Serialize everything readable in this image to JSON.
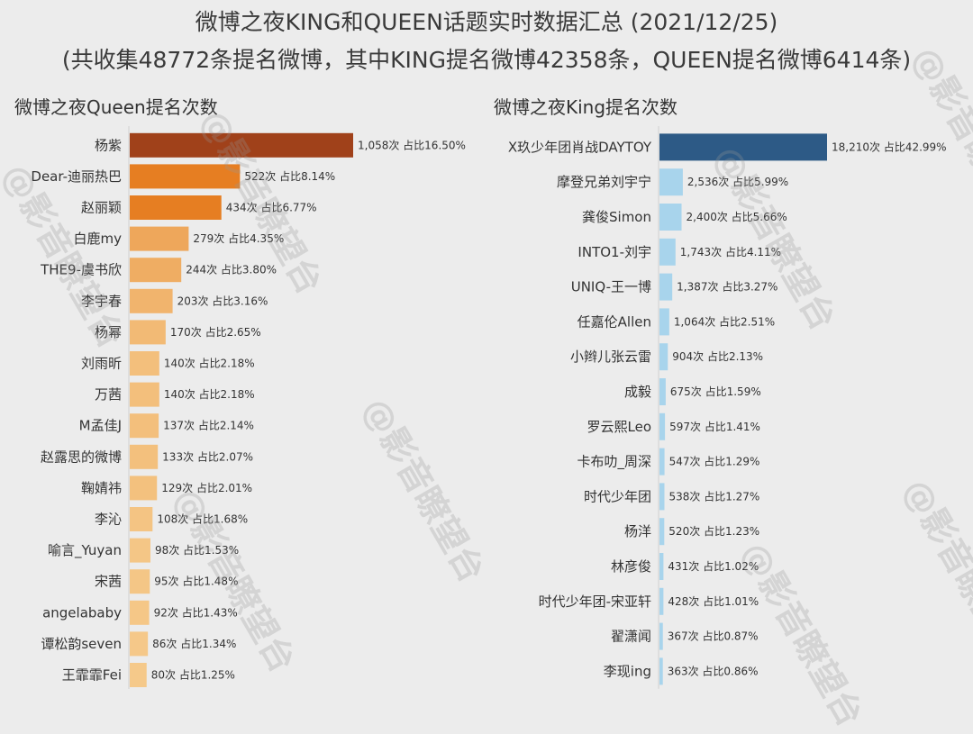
{
  "header": {
    "title": "微博之夜KING和QUEEN话题实时数据汇总 (2021/12/25)",
    "subtitle": "(共收集48772条提名微博，其中KING提名微博42358条，QUEEN提名微博6414条)"
  },
  "watermark_text": "@影音瞭望台",
  "chart_data": [
    {
      "type": "bar",
      "orientation": "horizontal",
      "title": "微博之夜Queen提名次数",
      "categories": [
        "杨紫",
        "Dear-迪丽热巴",
        "赵丽颖",
        "白鹿my",
        "THE9-虞书欣",
        "李宇春",
        "杨幂",
        "刘雨昕",
        "万茜",
        "M孟佳J",
        "赵露思的微博",
        "鞠婧祎",
        "李沁",
        "喻言_Yuyan",
        "宋茜",
        "angelababy",
        "谭松韵seven",
        "王霏霏Fei"
      ],
      "values": [
        1058,
        522,
        434,
        279,
        244,
        203,
        170,
        140,
        140,
        137,
        133,
        129,
        108,
        98,
        95,
        92,
        86,
        80
      ],
      "labels": [
        "1,058次 占比16.50%",
        "522次 占比8.14%",
        "434次 占比6.77%",
        "279次 占比4.35%",
        "244次 占比3.80%",
        "203次 占比3.16%",
        "170次 占比2.65%",
        "140次 占比2.18%",
        "140次 占比2.18%",
        "137次 占比2.14%",
        "133次 占比2.07%",
        "129次 占比2.01%",
        "108次 占比1.68%",
        "98次 占比1.53%",
        "95次 占比1.48%",
        "92次 占比1.43%",
        "86次 占比1.34%",
        "80次 占比1.25%"
      ],
      "colors": {
        "low": "#f5c98a",
        "mid": "#e67e22",
        "high": "#a0411a"
      }
    },
    {
      "type": "bar",
      "orientation": "horizontal",
      "title": "微博之夜King提名次数",
      "categories": [
        "X玖少年团肖战DAYTOY",
        "摩登兄弟刘宇宁",
        "龚俊Simon",
        "INTO1-刘宇",
        "UNIQ-王一博",
        "任嘉伦Allen",
        "小辫儿张云雷",
        "成毅",
        "罗云熙Leo",
        "卡布叻_周深",
        "时代少年团",
        "杨洋",
        "林彦俊",
        "时代少年团-宋亚轩",
        "翟潇闻",
        "李现ing"
      ],
      "values": [
        18210,
        2536,
        2400,
        1743,
        1387,
        1064,
        904,
        675,
        597,
        547,
        538,
        520,
        431,
        428,
        367,
        363
      ],
      "labels": [
        "18,210次 占比42.99%",
        "2,536次 占比5.99%",
        "2,400次 占比5.66%",
        "1,743次 占比4.11%",
        "1,387次 占比3.27%",
        "1,064次 占比2.51%",
        "904次 占比2.13%",
        "675次 占比1.59%",
        "597次 占比1.41%",
        "547次 占比1.29%",
        "538次 占比1.27%",
        "520次 占比1.23%",
        "431次 占比1.02%",
        "428次 占比1.01%",
        "367次 占比0.87%",
        "363次 占比0.86%"
      ],
      "colors": {
        "low": "#a8d4ec",
        "high": "#2d5a86"
      }
    }
  ]
}
